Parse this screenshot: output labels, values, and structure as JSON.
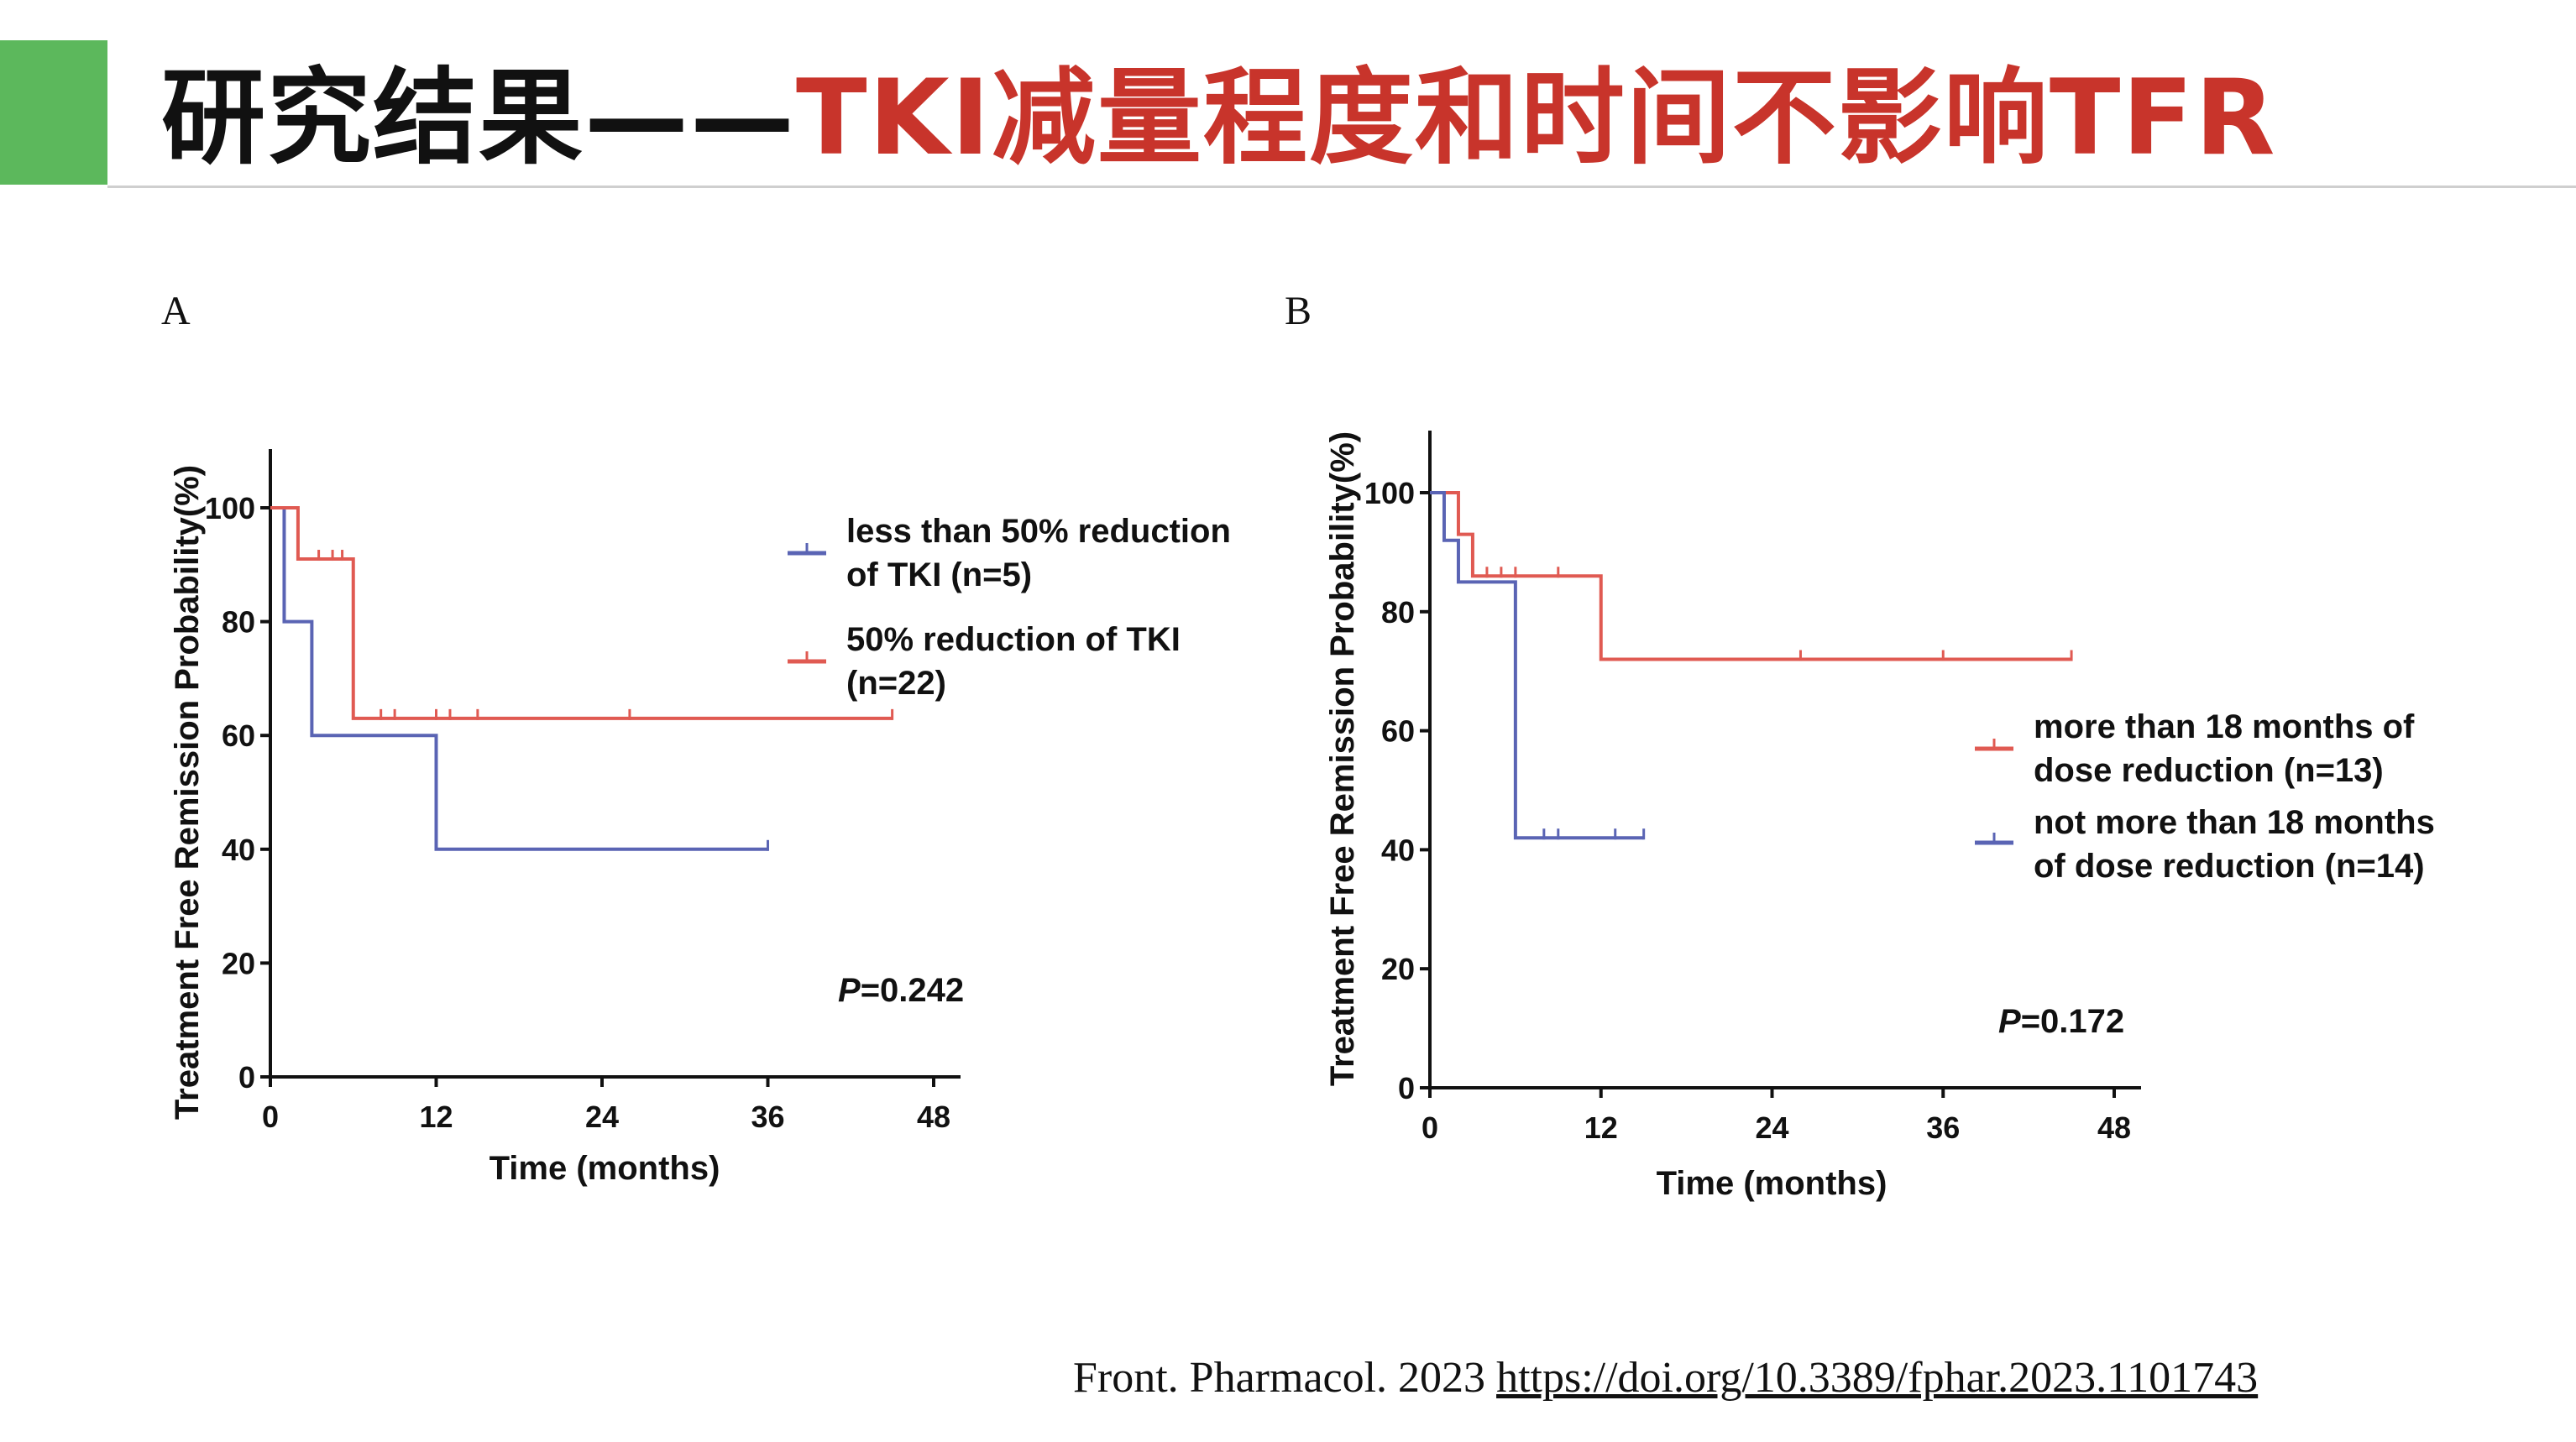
{
  "slide": {
    "title_black": "研究结果——",
    "title_red": "TKI减量程度和时间不影响TFR",
    "accent_color": "#5cb85c",
    "title_red_color": "#c8342b",
    "citation_text": "Front. Pharmacol. 2023 ",
    "citation_link": "https://doi.org/10.3389/fphar.2023.1101743"
  },
  "chart_data": [
    {
      "panel": "A",
      "type": "line",
      "subtype": "kaplan-meier",
      "xlabel": "Time (months)",
      "ylabel": "Treatment Free Remission Probability(%)",
      "xlim": [
        0,
        48
      ],
      "ylim": [
        0,
        100
      ],
      "xticks": [
        0,
        12,
        24,
        36,
        48
      ],
      "yticks": [
        0,
        20,
        40,
        60,
        80,
        100
      ],
      "legend_position": "right",
      "annotation_italic": "P",
      "annotation_rest": "=0.242",
      "series": [
        {
          "name": "less than 50% reduction of TKI (n=5)",
          "legend_lines": [
            "less than 50% reduction",
            "of TKI (n=5)"
          ],
          "color": "#5a64b4",
          "x": [
            0,
            1,
            3,
            12,
            36
          ],
          "y": [
            100,
            80,
            60,
            40,
            40
          ],
          "censored": [
            {
              "x": 36,
              "y": 40
            }
          ]
        },
        {
          "name": "50% reduction of TKI (n=22)",
          "legend_lines": [
            "50% reduction of TKI",
            "(n=22)"
          ],
          "color": "#e05a52",
          "x": [
            0,
            2,
            6,
            45
          ],
          "y": [
            100,
            91,
            63,
            63
          ],
          "censored": [
            {
              "x": 3.5,
              "y": 91
            },
            {
              "x": 4.5,
              "y": 91
            },
            {
              "x": 5.2,
              "y": 91
            },
            {
              "x": 8,
              "y": 63
            },
            {
              "x": 9,
              "y": 63
            },
            {
              "x": 12,
              "y": 63
            },
            {
              "x": 13,
              "y": 63
            },
            {
              "x": 15,
              "y": 63
            },
            {
              "x": 26,
              "y": 63
            },
            {
              "x": 45,
              "y": 63
            }
          ]
        }
      ]
    },
    {
      "panel": "B",
      "type": "line",
      "subtype": "kaplan-meier",
      "xlabel": "Time (months)",
      "ylabel": "Treatment Free Remission Probability(%)",
      "xlim": [
        0,
        48
      ],
      "ylim": [
        0,
        100
      ],
      "xticks": [
        0,
        12,
        24,
        36,
        48
      ],
      "yticks": [
        0,
        20,
        40,
        60,
        80,
        100
      ],
      "legend_position": "right",
      "annotation_italic": "P",
      "annotation_rest": "=0.172",
      "series": [
        {
          "name": "more than 18 months of dose reduction (n=13)",
          "legend_lines": [
            "more than 18 months of",
            "dose reduction (n=13)"
          ],
          "color": "#e05a52",
          "x": [
            0,
            2,
            3,
            12,
            45
          ],
          "y": [
            100,
            93,
            86,
            72,
            72
          ],
          "censored": [
            {
              "x": 4,
              "y": 86
            },
            {
              "x": 5,
              "y": 86
            },
            {
              "x": 6,
              "y": 86
            },
            {
              "x": 9,
              "y": 86
            },
            {
              "x": 26,
              "y": 72
            },
            {
              "x": 36,
              "y": 72
            },
            {
              "x": 45,
              "y": 72
            }
          ]
        },
        {
          "name": "not more than 18 months of dose reduction (n=14)",
          "legend_lines": [
            "not more than 18 months",
            "of dose reduction (n=14)"
          ],
          "color": "#5a64b4",
          "x": [
            0,
            1,
            2,
            6,
            15
          ],
          "y": [
            100,
            92,
            85,
            42,
            42
          ],
          "censored": [
            {
              "x": 8,
              "y": 42
            },
            {
              "x": 9,
              "y": 42
            },
            {
              "x": 13,
              "y": 42
            },
            {
              "x": 15,
              "y": 42
            }
          ]
        }
      ]
    }
  ]
}
